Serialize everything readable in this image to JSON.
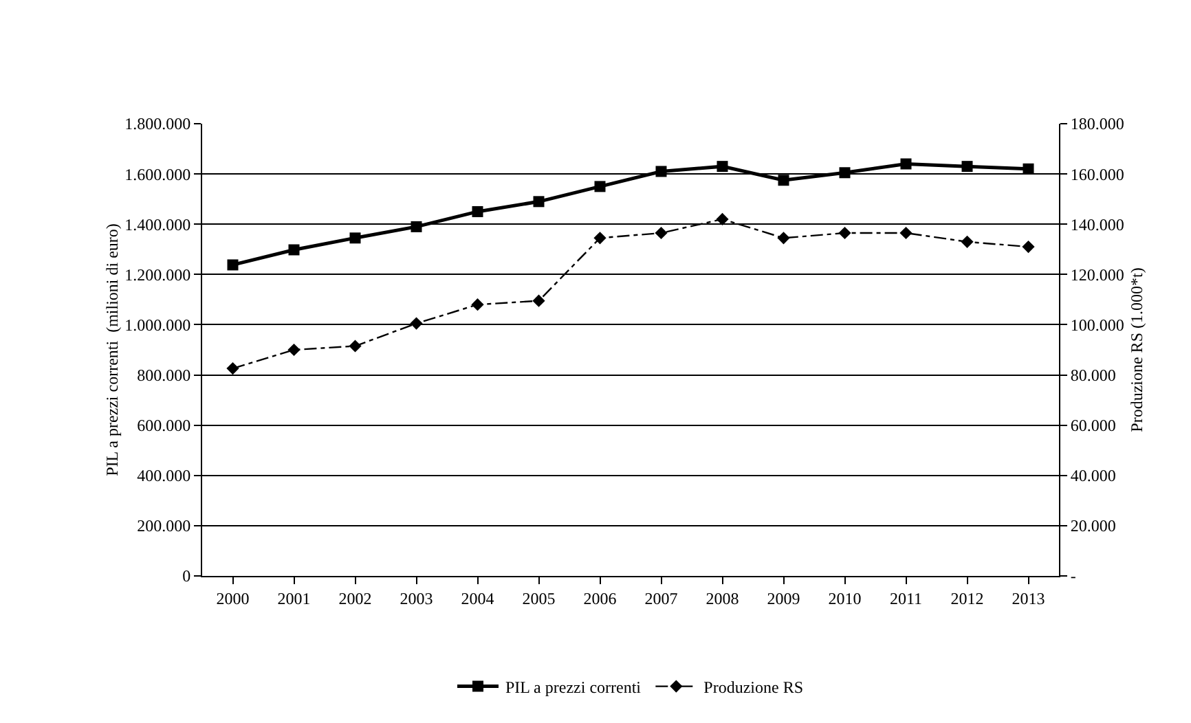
{
  "chart_data": {
    "type": "line",
    "ylabel": "PIL a prezzi correnti  (milioni di euro)",
    "y2label": "Produzione RS (1.000*t)",
    "categories": [
      "2000",
      "2001",
      "2002",
      "2003",
      "2004",
      "2005",
      "2006",
      "2007",
      "2008",
      "2009",
      "2010",
      "2011",
      "2012",
      "2013"
    ],
    "series": [
      {
        "name": "PIL a prezzi correnti",
        "color": "#000000",
        "marker": "square",
        "line_style": "solid",
        "values": [
          1238000,
          1298000,
          1345000,
          1390000,
          1450000,
          1490000,
          1550000,
          1610000,
          1630000,
          1575000,
          1605000,
          1640000,
          1630000,
          1620000
        ]
      },
      {
        "name": "Produzione RS",
        "color": "#000000",
        "marker": "diamond",
        "line_style": "dashed",
        "axis": "y2",
        "values": [
          82600,
          90000,
          91500,
          100500,
          108000,
          109500,
          134500,
          136500,
          142000,
          134500,
          136500,
          136500,
          133000,
          131000
        ]
      }
    ],
    "ylim": [
      0,
      1800000
    ],
    "yticks": [
      0,
      {
        "value": 200000,
        "label": "200.000"
      },
      {
        "value": 400000,
        "label": "400.000"
      },
      {
        "value": 600000,
        "label": "600.000"
      },
      {
        "value": 800000,
        "label": "800.000"
      },
      {
        "value": 1000000,
        "label": "1.000.000"
      },
      {
        "value": 1200000,
        "label": "1.200.000"
      },
      {
        "value": 1400000,
        "label": "1.400.000"
      },
      {
        "value": 1600000,
        "label": "1.600.000"
      },
      {
        "value": 1800000,
        "label": "1.800.000"
      }
    ],
    "y2lim": [
      0,
      180000
    ],
    "y2ticks": [
      {
        "value": 0,
        "label": "-"
      },
      {
        "value": 20000,
        "label": "20.000"
      },
      {
        "value": 40000,
        "label": "40.000"
      },
      {
        "value": 60000,
        "label": "60.000"
      },
      {
        "value": 80000,
        "label": "80.000"
      },
      {
        "value": 100000,
        "label": "100.000"
      },
      {
        "value": 120000,
        "label": "120.000"
      },
      {
        "value": 140000,
        "label": "140.000"
      },
      {
        "value": 160000,
        "label": "160.000"
      },
      {
        "value": 180000,
        "label": "180.000"
      }
    ],
    "grid": "y",
    "legend": "bottom"
  }
}
